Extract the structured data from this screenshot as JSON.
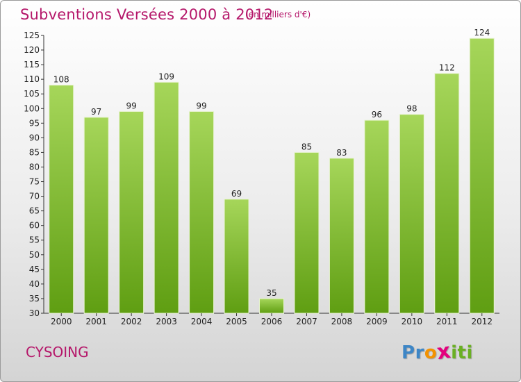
{
  "header": {
    "title": "Subventions Versées 2000 à 2012",
    "subtitle": "(en milliers d'€)"
  },
  "footer": {
    "city": "CYSOING",
    "logo": {
      "letters": [
        "P",
        "r",
        "o",
        "x",
        "i",
        "t",
        "i"
      ],
      "colors": [
        "#3d86c6",
        "#3d86c6",
        "#f39200",
        "#e4007e",
        "#6ab023",
        "#6ab023",
        "#6ab023"
      ]
    }
  },
  "colors": {
    "title": "#b5176a",
    "bar_light": "#a6d65a",
    "bar_dark": "#5f9e12",
    "axis": "#333333"
  },
  "chart_data": {
    "type": "bar",
    "title": "Subventions Versées 2000 à 2012",
    "subtitle": "(en milliers d'€)",
    "categories": [
      "2000",
      "2001",
      "2002",
      "2003",
      "2004",
      "2005",
      "2006",
      "2007",
      "2008",
      "2009",
      "2010",
      "2011",
      "2012"
    ],
    "values": [
      108,
      97,
      99,
      109,
      99,
      69,
      35,
      85,
      83,
      96,
      98,
      112,
      124
    ],
    "ylim": [
      30,
      125
    ],
    "yticks": [
      30,
      35,
      40,
      45,
      50,
      55,
      60,
      65,
      70,
      75,
      80,
      85,
      90,
      95,
      100,
      105,
      110,
      115,
      120,
      125
    ],
    "xlabel": "",
    "ylabel": "",
    "grid": false,
    "data_labels": true
  }
}
